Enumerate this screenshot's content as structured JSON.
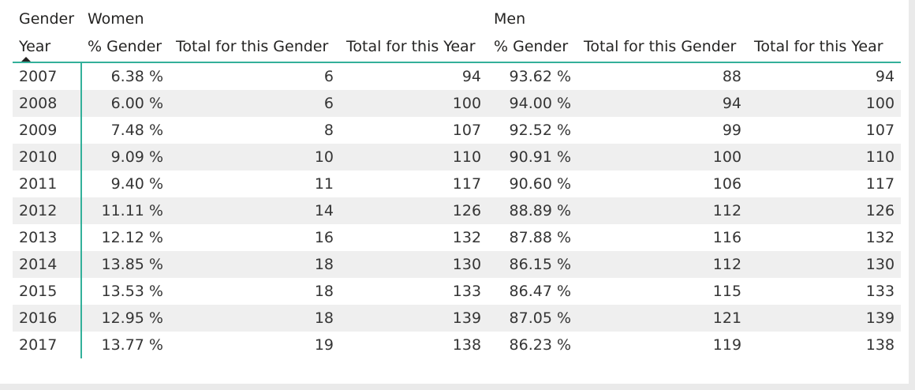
{
  "header": {
    "column_group_label": "Gender",
    "groups": [
      "Women",
      "Men"
    ],
    "row_header": "Year",
    "measures": [
      "% Gender",
      "Total for this Gender",
      "Total for this Year"
    ],
    "sort": {
      "column": "Year",
      "direction": "ascending"
    }
  },
  "rows": [
    {
      "year": "2007",
      "women_pct": "6.38 %",
      "women_total": "6",
      "women_year": "94",
      "men_pct": "93.62 %",
      "men_total": "88",
      "men_year": "94"
    },
    {
      "year": "2008",
      "women_pct": "6.00 %",
      "women_total": "6",
      "women_year": "100",
      "men_pct": "94.00 %",
      "men_total": "94",
      "men_year": "100"
    },
    {
      "year": "2009",
      "women_pct": "7.48 %",
      "women_total": "8",
      "women_year": "107",
      "men_pct": "92.52 %",
      "men_total": "99",
      "men_year": "107"
    },
    {
      "year": "2010",
      "women_pct": "9.09 %",
      "women_total": "10",
      "women_year": "110",
      "men_pct": "90.91 %",
      "men_total": "100",
      "men_year": "110"
    },
    {
      "year": "2011",
      "women_pct": "9.40 %",
      "women_total": "11",
      "women_year": "117",
      "men_pct": "90.60 %",
      "men_total": "106",
      "men_year": "117"
    },
    {
      "year": "2012",
      "women_pct": "11.11 %",
      "women_total": "14",
      "women_year": "126",
      "men_pct": "88.89 %",
      "men_total": "112",
      "men_year": "126"
    },
    {
      "year": "2013",
      "women_pct": "12.12 %",
      "women_total": "16",
      "women_year": "132",
      "men_pct": "87.88 %",
      "men_total": "116",
      "men_year": "132"
    },
    {
      "year": "2014",
      "women_pct": "13.85 %",
      "women_total": "18",
      "women_year": "130",
      "men_pct": "86.15 %",
      "men_total": "112",
      "men_year": "130"
    },
    {
      "year": "2015",
      "women_pct": "13.53 %",
      "women_total": "18",
      "women_year": "133",
      "men_pct": "86.47 %",
      "men_total": "115",
      "men_year": "133"
    },
    {
      "year": "2016",
      "women_pct": "12.95 %",
      "women_total": "18",
      "women_year": "139",
      "men_pct": "87.05 %",
      "men_total": "121",
      "men_year": "139"
    },
    {
      "year": "2017",
      "women_pct": "13.77 %",
      "women_total": "19",
      "women_year": "138",
      "men_pct": "86.23 %",
      "men_total": "119",
      "men_year": "138"
    }
  ],
  "colors": {
    "accent_line": "#33b09a",
    "banded_row": "#efefef",
    "frame": "#eaeaea"
  }
}
